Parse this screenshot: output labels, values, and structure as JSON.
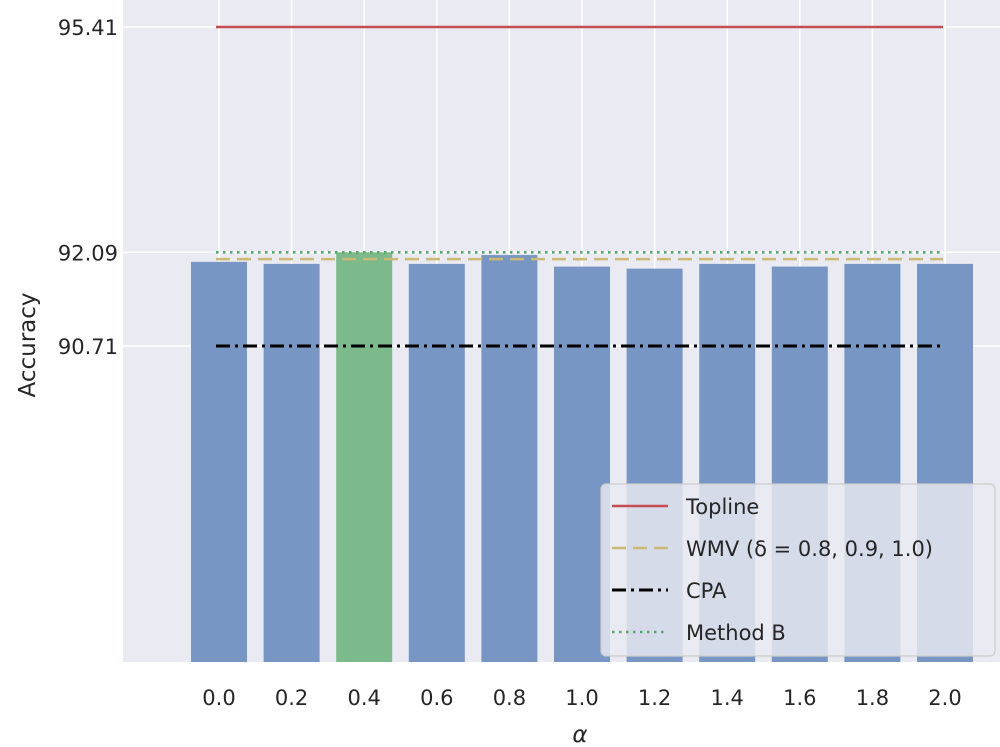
{
  "chart_data": {
    "type": "bar",
    "title": "",
    "xlabel": "α",
    "ylabel": "Accuracy",
    "categories": [
      "0.0",
      "0.2",
      "0.4",
      "0.6",
      "0.8",
      "1.0",
      "1.2",
      "1.4",
      "1.6",
      "1.8",
      "2.0"
    ],
    "values": [
      91.95,
      91.92,
      92.09,
      91.92,
      92.05,
      91.88,
      91.85,
      91.92,
      91.88,
      91.92,
      91.92
    ],
    "highlight_index": 2,
    "bar_color": "#7896c4",
    "highlight_color": "#7cba8c",
    "ylim": [
      89.2,
      95.5
    ],
    "yticks": [
      "90.71",
      "92.09",
      "95.41"
    ],
    "grid": true,
    "background": "#eaeaf2",
    "reference_lines": [
      {
        "name": "Topline",
        "value": 95.41,
        "style": "solid",
        "color": "#c44e52"
      },
      {
        "name": "WMV (δ = 0.8, 0.9, 1.0)",
        "value": 91.99,
        "style": "dashed",
        "color": "#ccb974"
      },
      {
        "name": "CPA",
        "value": 90.71,
        "style": "dashdot",
        "color": "#000000"
      },
      {
        "name": "Method B",
        "value": 92.09,
        "style": "dotted",
        "color": "#55a868"
      }
    ],
    "legend": {
      "position": "lower-right",
      "entries": [
        "Topline",
        "WMV (δ = 0.8, 0.9, 1.0)",
        "CPA",
        "Method B"
      ]
    }
  }
}
